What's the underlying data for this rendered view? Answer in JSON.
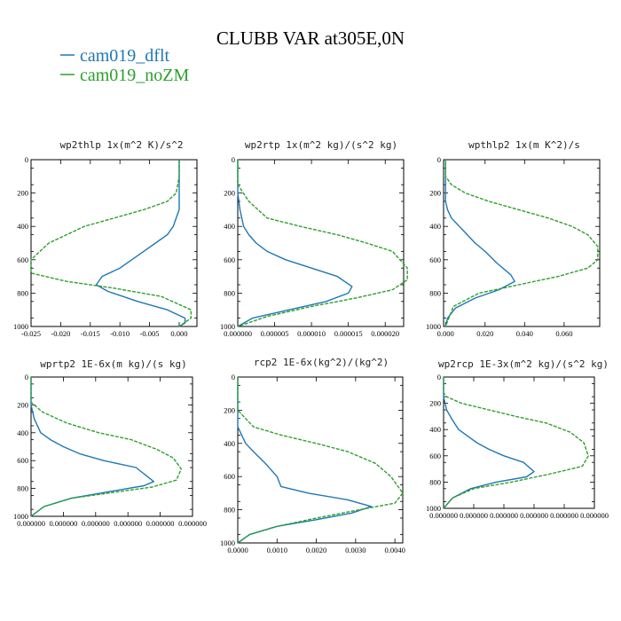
{
  "figure": {
    "title": "CLUBB VAR at305E,0N",
    "legend": [
      {
        "label": "cam019_dflt",
        "color": "#1f77b4"
      },
      {
        "label": "cam019_noZM",
        "color": "#2ca02c"
      }
    ]
  },
  "chart_data": [
    {
      "type": "line",
      "title": "wp2thlp   1x(m^2 K)/s^2",
      "xlim": [
        -0.025,
        0.003
      ],
      "ylim": [
        1000,
        0
      ],
      "xticks": [
        -0.025,
        -0.02,
        -0.015,
        -0.01,
        -0.005,
        0.0
      ],
      "xtick_labels": [
        "-0.025",
        "-0.020",
        "-0.015",
        "-0.010",
        "-0.005",
        "0.000"
      ],
      "yticks": [
        0,
        200,
        400,
        600,
        800,
        1000
      ],
      "ytick_labels": [
        "0",
        "200",
        "400",
        "600",
        "800",
        "1000"
      ],
      "series": [
        {
          "name": "cam019_dflt",
          "x": [
            0,
            0,
            0,
            0,
            -0.0005,
            -0.001,
            -0.002,
            -0.004,
            -0.006,
            -0.008,
            -0.01,
            -0.013,
            -0.014,
            -0.012,
            -0.007,
            -0.002,
            0.001,
            0.001,
            0.0
          ],
          "y": [
            0,
            100,
            200,
            300,
            350,
            400,
            450,
            500,
            550,
            600,
            650,
            700,
            750,
            790,
            850,
            900,
            950,
            980,
            1000
          ]
        },
        {
          "name": "cam019_noZM",
          "x": [
            0,
            0,
            -0.0005,
            -0.002,
            -0.006,
            -0.011,
            -0.016,
            -0.019,
            -0.022,
            -0.025,
            -0.025,
            -0.019,
            -0.011,
            -0.003,
            0.002,
            0.002,
            0.0
          ],
          "y": [
            0,
            100,
            200,
            250,
            300,
            350,
            400,
            450,
            500,
            600,
            680,
            730,
            770,
            820,
            900,
            950,
            1000
          ]
        }
      ]
    },
    {
      "type": "line",
      "title": "wp2rtp  1x(m^2 kg)/(s^2 kg)",
      "xlim": [
        0,
        2.25e-05
      ],
      "ylim": [
        1000,
        0
      ],
      "xticks": [
        0,
        5e-06,
        1e-05,
        1.5e-05,
        2e-05
      ],
      "xtick_labels": [
        "0.000000",
        "0.000005",
        "0.000010",
        "0.000015",
        "0.000020"
      ],
      "yticks": [
        0,
        200,
        400,
        600,
        800,
        1000
      ],
      "ytick_labels": [
        "0",
        "200",
        "400",
        "600",
        "800",
        "1000"
      ],
      "series": [
        {
          "name": "cam019_dflt",
          "x": [
            0,
            0,
            3e-07,
            8e-07,
            1.5e-06,
            2.5e-06,
            4e-06,
            6.5e-06,
            1e-05,
            1.35e-05,
            1.55e-05,
            1.5e-05,
            1.2e-05,
            7e-06,
            2e-06,
            0
          ],
          "y": [
            0,
            200,
            300,
            400,
            450,
            500,
            550,
            600,
            650,
            700,
            760,
            800,
            850,
            900,
            950,
            1000
          ]
        },
        {
          "name": "cam019_noZM",
          "x": [
            0,
            0,
            1.5e-06,
            4e-06,
            8.5e-06,
            1.35e-05,
            1.75e-05,
            2.1e-05,
            2.3e-05,
            2.3e-05,
            2.1e-05,
            1.6e-05,
            1e-05,
            4e-06,
            0
          ],
          "y": [
            0,
            150,
            250,
            350,
            400,
            450,
            500,
            550,
            650,
            720,
            780,
            830,
            880,
            940,
            1000
          ]
        }
      ]
    },
    {
      "type": "line",
      "title": "wpthlp2  1x(m K^2)/s",
      "xlim": [
        -0.001,
        0.078
      ],
      "ylim": [
        1000,
        0
      ],
      "xticks": [
        0,
        0.02,
        0.04,
        0.06
      ],
      "xtick_labels": [
        "0.000",
        "0.020",
        "0.040",
        "0.060"
      ],
      "yticks": [
        0,
        200,
        400,
        600,
        800,
        1000
      ],
      "ytick_labels": [
        "0",
        "200",
        "400",
        "600",
        "800",
        "1000"
      ],
      "series": [
        {
          "name": "cam019_dflt",
          "x": [
            0,
            0,
            0.001,
            0.003,
            0.007,
            0.011,
            0.015,
            0.02,
            0.026,
            0.033,
            0.035,
            0.027,
            0.015,
            0.005,
            0.001,
            0
          ],
          "y": [
            0,
            250,
            300,
            350,
            400,
            450,
            500,
            550,
            620,
            690,
            730,
            780,
            830,
            890,
            950,
            1000
          ]
        },
        {
          "name": "cam019_noZM",
          "x": [
            0,
            0,
            0.003,
            0.01,
            0.022,
            0.037,
            0.052,
            0.064,
            0.072,
            0.077,
            0.077,
            0.072,
            0.057,
            0.037,
            0.017,
            0.004,
            0
          ],
          "y": [
            0,
            100,
            150,
            200,
            250,
            300,
            350,
            400,
            450,
            520,
            600,
            650,
            700,
            750,
            800,
            880,
            1000
          ]
        }
      ]
    },
    {
      "type": "line",
      "title": "wprtp2  1E-6x(m kg)/(s kg)",
      "xlim": [
        0,
        1
      ],
      "ylim": [
        1000,
        0
      ],
      "xticks": [
        0,
        0.2,
        0.4,
        0.6,
        0.8,
        1.0
      ],
      "xtick_labels": [
        "0.000000",
        "0.000000",
        "0.000000",
        "0.000000",
        "0.000000",
        "0.000000"
      ],
      "yticks": [
        0,
        200,
        400,
        600,
        800,
        1000
      ],
      "ytick_labels": [
        "0",
        "200",
        "400",
        "600",
        "800",
        "1000"
      ],
      "series": [
        {
          "name": "cam019_dflt",
          "x": [
            0,
            0,
            0.02,
            0.06,
            0.12,
            0.2,
            0.3,
            0.45,
            0.65,
            0.76,
            0.7,
            0.5,
            0.25,
            0.08,
            0
          ],
          "y": [
            0,
            200,
            300,
            400,
            450,
            500,
            550,
            600,
            650,
            750,
            780,
            820,
            870,
            930,
            1000
          ]
        },
        {
          "name": "cam019_noZM",
          "x": [
            0,
            0,
            0.07,
            0.22,
            0.42,
            0.62,
            0.78,
            0.88,
            0.93,
            0.9,
            0.75,
            0.5,
            0.25,
            0.08,
            0
          ],
          "y": [
            0,
            180,
            250,
            330,
            400,
            450,
            520,
            580,
            660,
            740,
            790,
            830,
            870,
            930,
            1000
          ]
        }
      ]
    },
    {
      "type": "line",
      "title": "rcp2  1E-6x(kg^2)/(kg^2)",
      "xlim": [
        0,
        0.0042
      ],
      "ylim": [
        1000,
        0
      ],
      "xticks": [
        0,
        0.001,
        0.002,
        0.003,
        0.004
      ],
      "xtick_labels": [
        "0.0000",
        "0.0010",
        "0.0020",
        "0.0030",
        "0.0040"
      ],
      "yticks": [
        0,
        200,
        400,
        600,
        800,
        1000
      ],
      "ytick_labels": [
        "0",
        "200",
        "400",
        "600",
        "800",
        "1000"
      ],
      "series": [
        {
          "name": "cam019_dflt",
          "x": [
            0,
            0,
            0.0002,
            0.0004,
            0.0007,
            0.001,
            0.0011,
            0.0018,
            0.0028,
            0.0034,
            0.0029,
            0.002,
            0.001,
            0.0003,
            0
          ],
          "y": [
            0,
            300,
            400,
            450,
            520,
            600,
            660,
            700,
            740,
            780,
            820,
            860,
            900,
            950,
            1000
          ]
        },
        {
          "name": "cam019_noZM",
          "x": [
            0,
            0,
            0.0004,
            0.0011,
            0.002,
            0.0028,
            0.0035,
            0.0039,
            0.0042,
            0.004,
            0.0031,
            0.002,
            0.001,
            0.0003,
            0
          ],
          "y": [
            0,
            200,
            300,
            350,
            400,
            450,
            520,
            600,
            700,
            760,
            800,
            850,
            900,
            950,
            1000
          ]
        }
      ]
    },
    {
      "type": "line",
      "title": "wp2rcp  1E-3x(m^2 kg)/(s^2 kg)",
      "xlim": [
        0,
        1
      ],
      "ylim": [
        1000,
        0
      ],
      "xticks": [
        0,
        0.2,
        0.4,
        0.6,
        0.8,
        1.0
      ],
      "xtick_labels": [
        "0.000000",
        "0.000000",
        "0.000000",
        "0.000000",
        "0.000000",
        "0.000000"
      ],
      "yticks": [
        0,
        200,
        400,
        600,
        800,
        1000
      ],
      "ytick_labels": [
        "0",
        "200",
        "400",
        "600",
        "800",
        "1000"
      ],
      "series": [
        {
          "name": "cam019_dflt",
          "x": [
            0,
            0,
            0.02,
            0.06,
            0.1,
            0.16,
            0.22,
            0.3,
            0.4,
            0.53,
            0.6,
            0.55,
            0.35,
            0.18,
            0.06,
            0
          ],
          "y": [
            0,
            150,
            250,
            330,
            400,
            450,
            500,
            550,
            600,
            650,
            720,
            760,
            800,
            850,
            920,
            1000
          ]
        },
        {
          "name": "cam019_noZM",
          "x": [
            0,
            0,
            0.02,
            0.12,
            0.3,
            0.48,
            0.68,
            0.84,
            0.93,
            0.96,
            0.92,
            0.7,
            0.45,
            0.2,
            0.06,
            0
          ],
          "y": [
            0,
            120,
            150,
            200,
            250,
            300,
            350,
            420,
            500,
            600,
            680,
            740,
            800,
            850,
            920,
            1000
          ]
        }
      ]
    }
  ]
}
